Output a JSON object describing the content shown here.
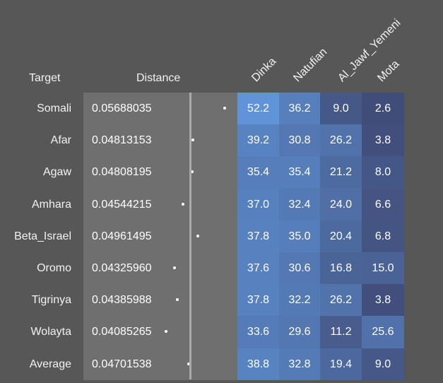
{
  "headers": {
    "target": "Target",
    "distance": "Distance",
    "columns": [
      "Dinka",
      "Natufian",
      "Al_Jawf_Yemeni",
      "Mota"
    ]
  },
  "rows": [
    {
      "label": "Somali",
      "distance": "0.05688035",
      "dist_value": 0.05688035,
      "values": [
        "52.2",
        "36.2",
        "9.0",
        "2.6"
      ]
    },
    {
      "label": "Afar",
      "distance": "0.04813153",
      "dist_value": 0.04813153,
      "values": [
        "39.2",
        "30.8",
        "26.2",
        "3.8"
      ]
    },
    {
      "label": "Agaw",
      "distance": "0.04808195",
      "dist_value": 0.04808195,
      "values": [
        "35.4",
        "35.4",
        "21.2",
        "8.0"
      ]
    },
    {
      "label": "Amhara",
      "distance": "0.04544215",
      "dist_value": 0.04544215,
      "values": [
        "37.0",
        "32.4",
        "24.0",
        "6.6"
      ]
    },
    {
      "label": "Beta_Israel",
      "distance": "0.04961495",
      "dist_value": 0.04961495,
      "values": [
        "37.8",
        "35.0",
        "20.4",
        "6.8"
      ]
    },
    {
      "label": "Oromo",
      "distance": "0.04325960",
      "dist_value": 0.0432596,
      "values": [
        "37.6",
        "30.6",
        "16.8",
        "15.0"
      ]
    },
    {
      "label": "Tigrinya",
      "distance": "0.04385988",
      "dist_value": 0.04385988,
      "values": [
        "37.8",
        "32.2",
        "26.2",
        "3.8"
      ]
    },
    {
      "label": "Wolayta",
      "distance": "0.04085265",
      "dist_value": 0.04085265,
      "values": [
        "33.6",
        "29.6",
        "11.2",
        "25.6"
      ]
    },
    {
      "label": "Average",
      "distance": "0.04701538",
      "dist_value": 0.04701538,
      "values": [
        "38.8",
        "32.8",
        "19.4",
        "9.0"
      ]
    }
  ],
  "colors": {
    "background": "#575757",
    "distance_bg": "#6f6f6f",
    "heat_low": "#3f4771",
    "heat_high": "#5f94d8"
  }
}
